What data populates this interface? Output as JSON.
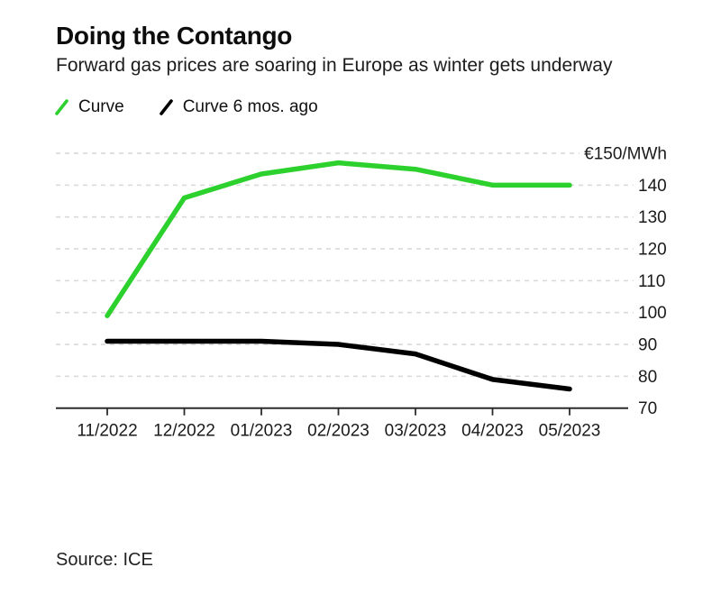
{
  "header": {
    "title": "Doing the Contango",
    "subtitle": "Forward gas prices are soaring in Europe as winter gets underway"
  },
  "legend": {
    "items": [
      {
        "label": "Curve",
        "color": "#2dd12d",
        "icon": "line-swatch-icon"
      },
      {
        "label": "Curve 6 mos. ago",
        "color": "#000000",
        "icon": "line-swatch-icon"
      }
    ]
  },
  "chart_data": {
    "type": "line",
    "title": "Doing the Contango",
    "subtitle": "Forward gas prices are soaring in Europe as winter gets underway",
    "categories": [
      "11/2022",
      "12/2022",
      "01/2023",
      "02/2023",
      "03/2023",
      "04/2023",
      "05/2023"
    ],
    "series": [
      {
        "name": "Curve",
        "color": "#2dd12d",
        "values": [
          99,
          136,
          143.5,
          147,
          145,
          140,
          140
        ]
      },
      {
        "name": "Curve 6 mos. ago",
        "color": "#000000",
        "values": [
          91,
          91,
          91,
          90,
          87,
          79,
          76
        ]
      }
    ],
    "ylim": [
      70,
      150
    ],
    "y_ticks": [
      70,
      80,
      90,
      100,
      110,
      120,
      130,
      140
    ],
    "y_axis_top_value": 150,
    "y_axis_top_label": "€150/MWh",
    "xlabel": "",
    "ylabel": "€/MWh",
    "grid": "horizontal-dashed",
    "legend_position": "top-left"
  },
  "footer": {
    "source_label": "Source: ICE"
  },
  "colors": {
    "grid": "#d9d9d9",
    "axis": "#2b2b2b",
    "tick_text": "#1a1a1a",
    "background": "#ffffff"
  }
}
